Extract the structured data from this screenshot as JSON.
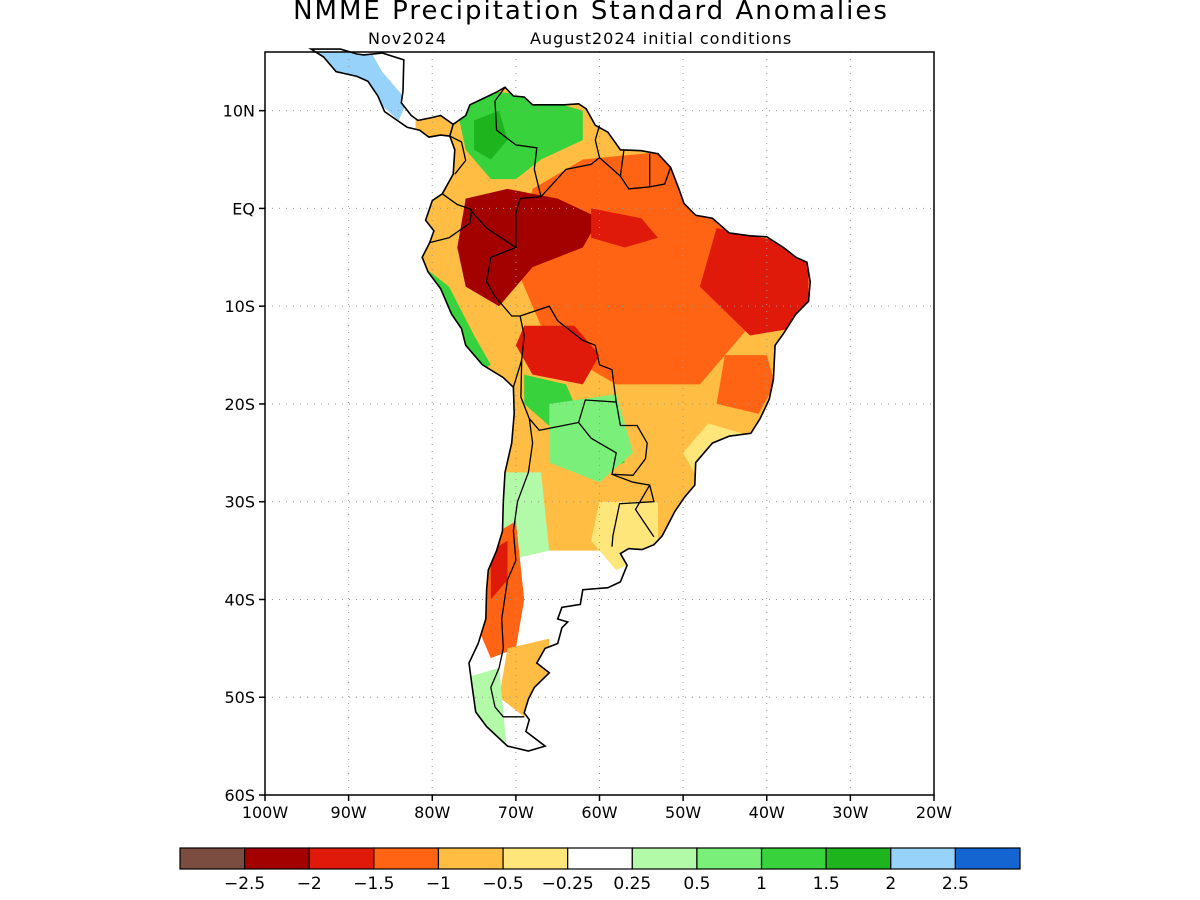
{
  "title": "NMME Precipitation Standard Anomalies",
  "subtitle": {
    "target_month": "Nov2024",
    "initial_conditions": "August2024 initial conditions"
  },
  "axes": {
    "lat_ticks": [
      "10N",
      "EQ",
      "10S",
      "20S",
      "30S",
      "40S",
      "50S",
      "60S"
    ],
    "lon_ticks": [
      "100W",
      "90W",
      "80W",
      "70W",
      "60W",
      "50W",
      "40W",
      "30W",
      "20W"
    ],
    "lon_range": [
      -100,
      -20
    ],
    "lat_range": [
      -60,
      16
    ],
    "grid": true
  },
  "colorbar": {
    "colors": [
      "#7a4d40",
      "#a30000",
      "#e01a0a",
      "#ff6414",
      "#ffbd44",
      "#ffe67a",
      "#ffffff",
      "#b3faa8",
      "#7af07a",
      "#37d23c",
      "#1eb41e",
      "#96d2fa",
      "#1464d2"
    ],
    "labels": [
      "−2.5",
      "−2",
      "−1.5",
      "−1",
      "−0.5",
      "−0.25",
      "0.25",
      "0.5",
      "1",
      "1.5",
      "2",
      "2.5"
    ]
  },
  "anomaly_patches": [
    {
      "region": "northern Amazon and northwest",
      "level": "-2"
    },
    {
      "region": "northeast Brazil",
      "level": "-1.5"
    },
    {
      "region": "central Brazil",
      "level": "-0.5"
    },
    {
      "region": "Colombia and Venezuela",
      "level": "1"
    },
    {
      "region": "Peru coast",
      "level": "1"
    },
    {
      "region": "Bolivia and Paraguay",
      "level": "1"
    },
    {
      "region": "Central America",
      "level": "2"
    },
    {
      "region": "Argentina",
      "level": "-0.5"
    },
    {
      "region": "Chile",
      "level": "-1"
    }
  ]
}
